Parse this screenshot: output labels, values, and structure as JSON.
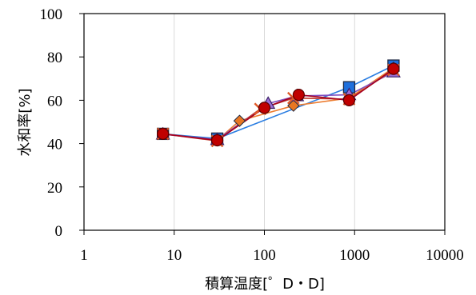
{
  "chart_data": {
    "type": "scatter",
    "xlabel": "積算温度[゜D・D]",
    "ylabel": "水和率[%]",
    "xscale": "log",
    "xlim": [
      1,
      10000
    ],
    "ylim": [
      0,
      100
    ],
    "x_ticks": [
      1,
      10,
      100,
      1000,
      10000
    ],
    "y_ticks": [
      0,
      20,
      40,
      60,
      80,
      100
    ],
    "x_tick_labels": [
      "1",
      "10",
      "100",
      "1000",
      "10000"
    ],
    "y_tick_labels": [
      "0",
      "20",
      "40",
      "60",
      "80",
      "100"
    ],
    "grid": "vertical",
    "legend": "none",
    "series": [
      {
        "marker": "square",
        "color": "#1e6fdc",
        "line_color": "#2a7de1",
        "points": [
          [
            7.5,
            44.5
          ],
          [
            30,
            42.3
          ],
          [
            870,
            66
          ],
          [
            2700,
            76
          ]
        ]
      },
      {
        "marker": "diamond",
        "color": "#e87722",
        "line_color": "#ed7d31",
        "points": [
          [
            7.5,
            44.5
          ],
          [
            30,
            41.5
          ],
          [
            53,
            50.5
          ],
          [
            210,
            57.5
          ],
          [
            870,
            61
          ],
          [
            2700,
            75
          ]
        ]
      },
      {
        "marker": "triangle",
        "color": "#9b6fd6",
        "line_color": "#7f4fc0",
        "points": [
          [
            7.5,
            44.3
          ],
          [
            30,
            41.8
          ],
          [
            110,
            58.5
          ],
          [
            230,
            62
          ],
          [
            870,
            62.5
          ],
          [
            2700,
            73
          ]
        ]
      },
      {
        "marker": "x",
        "color": "#e05a28",
        "line_color": "#c0392b",
        "points": [
          [
            7.5,
            44.5
          ],
          [
            30,
            41.2
          ],
          [
            90,
            56
          ],
          [
            210,
            61
          ],
          [
            870,
            60.5
          ],
          [
            2700,
            74
          ]
        ]
      },
      {
        "marker": "circle",
        "color": "#c00000",
        "line_color": "#a50021",
        "points": [
          [
            7.5,
            44.5
          ],
          [
            30,
            41.5
          ],
          [
            100,
            56.5
          ],
          [
            240,
            62.5
          ],
          [
            870,
            60
          ],
          [
            2700,
            74.5
          ]
        ]
      }
    ]
  }
}
